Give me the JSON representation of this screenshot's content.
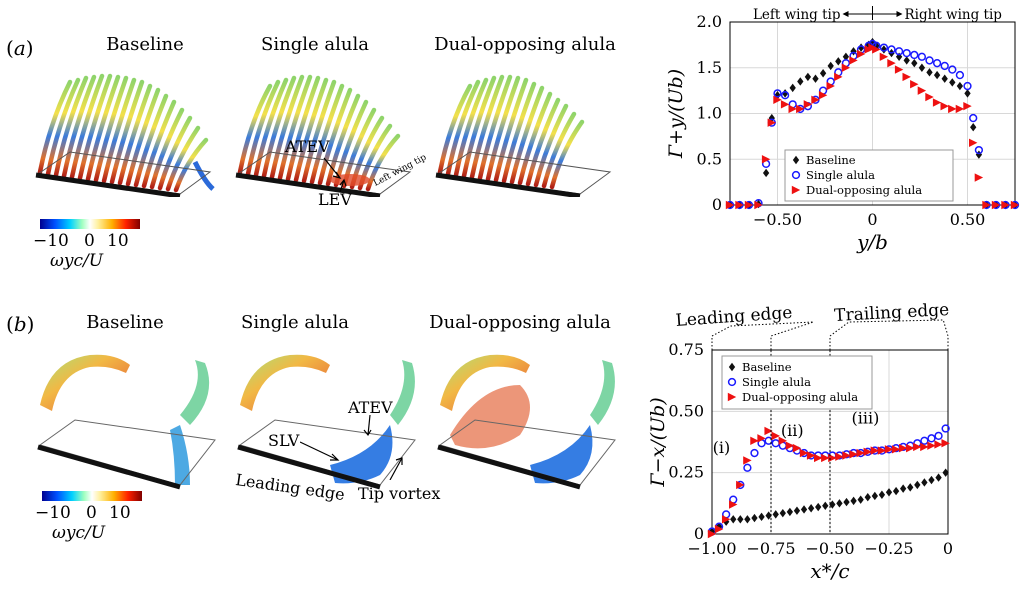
{
  "panels": {
    "a": {
      "letter": "a",
      "titles": [
        "Baseline",
        "Single alula",
        "Dual-opposing alula"
      ],
      "colorbar": {
        "ticks": [
          "−10",
          "0",
          "10"
        ],
        "label": "ωyc/U"
      },
      "annotations": {
        "atev": "ATEV",
        "lev": "LEV",
        "left_wing_tip": "Left wing tip"
      }
    },
    "b": {
      "letter": "b",
      "titles": [
        "Baseline",
        "Single alula",
        "Dual-opposing alula"
      ],
      "colorbar": {
        "ticks": [
          "−10",
          "0",
          "10"
        ],
        "label": "ωyc/U"
      },
      "annotations": {
        "atev": "ATEV",
        "slv": "SLV",
        "leading_edge": "Leading edge",
        "tip_vortex": "Tip vortex"
      }
    }
  },
  "chart_data": [
    {
      "type": "scatter",
      "xlabel": "y/b",
      "ylabel": "Γ+y/(Ub)",
      "xlim": [
        -0.75,
        0.75
      ],
      "ylim": [
        0,
        2.0
      ],
      "xticks": [
        "−0.50",
        "0",
        "0.50"
      ],
      "xtick_values": [
        -0.5,
        0,
        0.5
      ],
      "yticks": [
        "0",
        "0.5",
        "1.0",
        "1.5",
        "2.0"
      ],
      "ytick_values": [
        0,
        0.5,
        1.0,
        1.5,
        2.0
      ],
      "grid": true,
      "legend_position": "bottom-right",
      "top_annotations": {
        "left": "Left wing tip",
        "right": "Right wing tip"
      },
      "series": [
        {
          "name": "Baseline",
          "marker": "diamond",
          "color": "#111111",
          "x": [
            -0.75,
            -0.7,
            -0.65,
            -0.6,
            -0.56,
            -0.53,
            -0.5,
            -0.46,
            -0.42,
            -0.38,
            -0.34,
            -0.3,
            -0.26,
            -0.22,
            -0.18,
            -0.14,
            -0.1,
            -0.06,
            -0.02,
            0.0,
            0.02,
            0.06,
            0.1,
            0.14,
            0.18,
            0.22,
            0.26,
            0.3,
            0.34,
            0.38,
            0.42,
            0.46,
            0.5,
            0.53,
            0.56,
            0.6,
            0.65,
            0.7,
            0.75
          ],
          "y": [
            0,
            0,
            0,
            0.01,
            0.35,
            0.95,
            1.2,
            1.22,
            1.28,
            1.35,
            1.4,
            1.38,
            1.44,
            1.52,
            1.57,
            1.62,
            1.68,
            1.72,
            1.75,
            1.78,
            1.74,
            1.7,
            1.66,
            1.62,
            1.58,
            1.55,
            1.5,
            1.45,
            1.42,
            1.38,
            1.34,
            1.3,
            1.22,
            0.85,
            0.55,
            0,
            0,
            0,
            0
          ]
        },
        {
          "name": "Single alula",
          "marker": "circle",
          "color": "#1a1aff",
          "x": [
            -0.75,
            -0.7,
            -0.65,
            -0.6,
            -0.56,
            -0.53,
            -0.5,
            -0.46,
            -0.42,
            -0.38,
            -0.34,
            -0.3,
            -0.26,
            -0.22,
            -0.18,
            -0.14,
            -0.1,
            -0.06,
            -0.02,
            0.0,
            0.02,
            0.06,
            0.1,
            0.14,
            0.18,
            0.22,
            0.26,
            0.3,
            0.34,
            0.38,
            0.42,
            0.46,
            0.5,
            0.53,
            0.56,
            0.6,
            0.65,
            0.7,
            0.75
          ],
          "y": [
            0,
            0,
            0,
            0.02,
            0.45,
            0.9,
            1.22,
            1.2,
            1.1,
            1.05,
            1.08,
            1.15,
            1.25,
            1.35,
            1.45,
            1.55,
            1.63,
            1.7,
            1.74,
            1.76,
            1.74,
            1.72,
            1.7,
            1.68,
            1.66,
            1.64,
            1.62,
            1.58,
            1.55,
            1.52,
            1.48,
            1.42,
            1.3,
            0.95,
            0.6,
            0,
            0,
            0,
            0
          ]
        },
        {
          "name": "Dual-opposing alula",
          "marker": "triangle-right",
          "color": "#ee1111",
          "x": [
            -0.75,
            -0.7,
            -0.65,
            -0.6,
            -0.56,
            -0.53,
            -0.5,
            -0.46,
            -0.42,
            -0.38,
            -0.34,
            -0.3,
            -0.26,
            -0.22,
            -0.18,
            -0.14,
            -0.1,
            -0.06,
            -0.02,
            0.0,
            0.02,
            0.06,
            0.1,
            0.14,
            0.18,
            0.22,
            0.26,
            0.3,
            0.34,
            0.38,
            0.42,
            0.46,
            0.5,
            0.53,
            0.56,
            0.6,
            0.65,
            0.7,
            0.75
          ],
          "y": [
            0,
            0,
            0,
            0,
            0.5,
            0.9,
            1.15,
            1.1,
            1.05,
            1.05,
            1.1,
            1.15,
            1.2,
            1.3,
            1.4,
            1.5,
            1.58,
            1.65,
            1.7,
            1.72,
            1.7,
            1.62,
            1.55,
            1.48,
            1.4,
            1.32,
            1.25,
            1.18,
            1.12,
            1.08,
            1.05,
            1.05,
            1.08,
            0.68,
            0.3,
            0,
            0,
            0,
            0
          ]
        }
      ]
    },
    {
      "type": "scatter",
      "xlabel": "x*/c",
      "ylabel": "Γ−x/(Ub)",
      "xlim": [
        -1.0,
        0
      ],
      "ylim": [
        0,
        0.75
      ],
      "xticks": [
        "−1.00",
        "−0.75",
        "−0.50",
        "−0.25",
        "0"
      ],
      "xtick_values": [
        -1.0,
        -0.75,
        -0.5,
        -0.25,
        0
      ],
      "yticks": [
        "0",
        "0.25",
        "0.50",
        "0.75"
      ],
      "ytick_values": [
        0,
        0.25,
        0.5,
        0.75
      ],
      "grid": true,
      "legend_position": "top-left",
      "region_labels": [
        "(i)",
        "(ii)",
        "(iii)"
      ],
      "region_dividers": [
        -0.75,
        -0.5
      ],
      "top_annotations": {
        "leading": "Leading edge",
        "trailing": "Trailing edge"
      },
      "series": [
        {
          "name": "Baseline",
          "marker": "diamond",
          "color": "#111111",
          "x": [
            -1.0,
            -0.97,
            -0.94,
            -0.91,
            -0.88,
            -0.85,
            -0.82,
            -0.79,
            -0.76,
            -0.73,
            -0.7,
            -0.67,
            -0.64,
            -0.61,
            -0.58,
            -0.55,
            -0.52,
            -0.49,
            -0.46,
            -0.43,
            -0.4,
            -0.37,
            -0.34,
            -0.31,
            -0.28,
            -0.25,
            -0.22,
            -0.19,
            -0.16,
            -0.13,
            -0.1,
            -0.07,
            -0.04,
            -0.01
          ],
          "y": [
            0.01,
            0.03,
            0.05,
            0.06,
            0.06,
            0.06,
            0.065,
            0.07,
            0.075,
            0.08,
            0.085,
            0.09,
            0.095,
            0.1,
            0.105,
            0.11,
            0.115,
            0.12,
            0.125,
            0.13,
            0.135,
            0.14,
            0.15,
            0.155,
            0.16,
            0.17,
            0.175,
            0.185,
            0.19,
            0.2,
            0.21,
            0.22,
            0.23,
            0.25
          ]
        },
        {
          "name": "Single alula",
          "marker": "circle",
          "color": "#1a1aff",
          "x": [
            -1.0,
            -0.97,
            -0.94,
            -0.91,
            -0.88,
            -0.85,
            -0.82,
            -0.79,
            -0.76,
            -0.73,
            -0.7,
            -0.67,
            -0.64,
            -0.61,
            -0.58,
            -0.55,
            -0.52,
            -0.49,
            -0.46,
            -0.43,
            -0.4,
            -0.37,
            -0.34,
            -0.31,
            -0.28,
            -0.25,
            -0.22,
            -0.19,
            -0.16,
            -0.13,
            -0.1,
            -0.07,
            -0.04,
            -0.01
          ],
          "y": [
            0.01,
            0.03,
            0.08,
            0.14,
            0.2,
            0.27,
            0.33,
            0.37,
            0.38,
            0.37,
            0.36,
            0.35,
            0.34,
            0.33,
            0.32,
            0.32,
            0.32,
            0.32,
            0.32,
            0.325,
            0.33,
            0.33,
            0.335,
            0.34,
            0.34,
            0.345,
            0.35,
            0.355,
            0.36,
            0.37,
            0.38,
            0.39,
            0.4,
            0.43
          ]
        },
        {
          "name": "Dual-opposing alula",
          "marker": "triangle-right",
          "color": "#ee1111",
          "x": [
            -1.0,
            -0.97,
            -0.94,
            -0.91,
            -0.88,
            -0.85,
            -0.82,
            -0.79,
            -0.76,
            -0.73,
            -0.7,
            -0.67,
            -0.64,
            -0.61,
            -0.58,
            -0.55,
            -0.52,
            -0.49,
            -0.46,
            -0.43,
            -0.4,
            -0.37,
            -0.34,
            -0.31,
            -0.28,
            -0.25,
            -0.22,
            -0.19,
            -0.16,
            -0.13,
            -0.1,
            -0.07,
            -0.04,
            -0.01
          ],
          "y": [
            0.0,
            0.02,
            0.06,
            0.12,
            0.2,
            0.3,
            0.38,
            0.39,
            0.42,
            0.4,
            0.38,
            0.36,
            0.35,
            0.33,
            0.32,
            0.31,
            0.31,
            0.31,
            0.315,
            0.32,
            0.325,
            0.33,
            0.335,
            0.34,
            0.34,
            0.345,
            0.345,
            0.35,
            0.35,
            0.355,
            0.355,
            0.36,
            0.365,
            0.37
          ]
        }
      ]
    }
  ]
}
